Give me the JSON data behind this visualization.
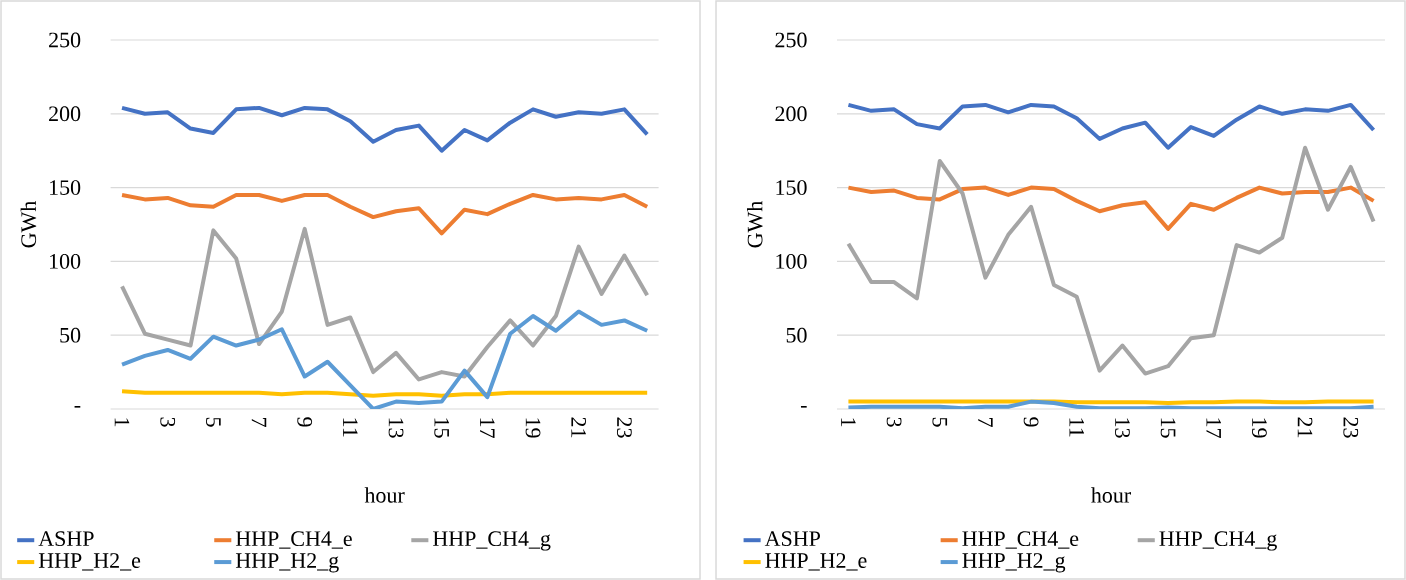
{
  "chart_data": [
    {
      "type": "line",
      "xlabel": "hour",
      "ylabel": "GWh",
      "categories": [
        "1",
        null,
        "3",
        null,
        "5",
        null,
        "7",
        null,
        "9",
        null,
        "11",
        null,
        "13",
        null,
        "15",
        null,
        "17",
        null,
        "19",
        null,
        "21",
        null,
        "23",
        null
      ],
      "ylim": [
        0,
        250
      ],
      "yticks": [
        {
          "value": 0,
          "label": "-"
        },
        50,
        100,
        150,
        200,
        250
      ],
      "grid": "y",
      "legend": "bottom",
      "marker": "none",
      "line_style": "solid",
      "series": [
        {
          "name": "ASHP",
          "color": "#4472c4",
          "values": [
            204,
            200,
            201,
            190,
            187,
            203,
            204,
            199,
            204,
            203,
            195,
            181,
            189,
            192,
            175,
            189,
            182,
            194,
            203,
            198,
            201,
            200,
            203,
            186
          ]
        },
        {
          "name": "HHP_CH4_e",
          "color": "#ed7d31",
          "values": [
            145,
            142,
            143,
            138,
            137,
            145,
            145,
            141,
            145,
            145,
            137,
            130,
            134,
            136,
            119,
            135,
            132,
            139,
            145,
            142,
            143,
            142,
            145,
            137
          ]
        },
        {
          "name": "HHP_CH4_g",
          "color": "#a5a5a5",
          "values": [
            83,
            51,
            47,
            43,
            121,
            102,
            44,
            66,
            122,
            57,
            62,
            25,
            38,
            20,
            25,
            22,
            42,
            60,
            43,
            63,
            110,
            78,
            104,
            77
          ]
        },
        {
          "name": "HHP_H2_e",
          "color": "#ffc000",
          "values": [
            12,
            11,
            11,
            11,
            11,
            11,
            11,
            10,
            11,
            11,
            10,
            9,
            10,
            10,
            9,
            10,
            10,
            11,
            11,
            11,
            11,
            11,
            11,
            11
          ]
        },
        {
          "name": "HHP_H2_g",
          "color": "#5b9bd5",
          "values": [
            30,
            36,
            40,
            34,
            49,
            43,
            47,
            54,
            22,
            32,
            16,
            0,
            5,
            4,
            5,
            26,
            8,
            51,
            63,
            53,
            66,
            57,
            60,
            53
          ]
        }
      ]
    },
    {
      "type": "line",
      "xlabel": "hour",
      "ylabel": "GWh",
      "categories": [
        "1",
        null,
        "3",
        null,
        "5",
        null,
        "7",
        null,
        "9",
        null,
        "11",
        null,
        "13",
        null,
        "15",
        null,
        "17",
        null,
        "19",
        null,
        "21",
        null,
        "23",
        null
      ],
      "ylim": [
        0,
        250
      ],
      "yticks": [
        {
          "value": 0,
          "label": "-"
        },
        50,
        100,
        150,
        200,
        250
      ],
      "grid": "y",
      "legend": "bottom",
      "marker": "none",
      "line_style": "solid",
      "series": [
        {
          "name": "ASHP",
          "color": "#4472c4",
          "values": [
            206,
            202,
            203,
            193,
            190,
            205,
            206,
            201,
            206,
            205,
            197,
            183,
            190,
            194,
            177,
            191,
            185,
            196,
            205,
            200,
            203,
            202,
            206,
            189
          ]
        },
        {
          "name": "HHP_CH4_e",
          "color": "#ed7d31",
          "values": [
            150,
            147,
            148,
            143,
            142,
            149,
            150,
            145,
            150,
            149,
            141,
            134,
            138,
            140,
            122,
            139,
            135,
            143,
            150,
            146,
            147,
            147,
            150,
            141
          ]
        },
        {
          "name": "HHP_CH4_g",
          "color": "#a5a5a5",
          "values": [
            112,
            86,
            86,
            75,
            168,
            146,
            89,
            118,
            137,
            84,
            76,
            26,
            43,
            24,
            29,
            48,
            50,
            111,
            106,
            116,
            177,
            135,
            164,
            127
          ]
        },
        {
          "name": "HHP_H2_e",
          "color": "#ffc000",
          "values": [
            5,
            5,
            5,
            5,
            5,
            5,
            5,
            5,
            5,
            5,
            4.5,
            4.5,
            4.5,
            4.5,
            4,
            4.5,
            4.5,
            5,
            5,
            4.5,
            4.5,
            5,
            5,
            5
          ]
        },
        {
          "name": "HHP_H2_g",
          "color": "#5b9bd5",
          "values": [
            1,
            1.5,
            1.5,
            1.5,
            1.5,
            0.5,
            1.5,
            1.5,
            5,
            4,
            1.5,
            0.5,
            0.5,
            0.5,
            1,
            0.5,
            0.5,
            0.5,
            0.5,
            0.5,
            0.5,
            0.5,
            0.5,
            1.5
          ]
        }
      ]
    }
  ]
}
